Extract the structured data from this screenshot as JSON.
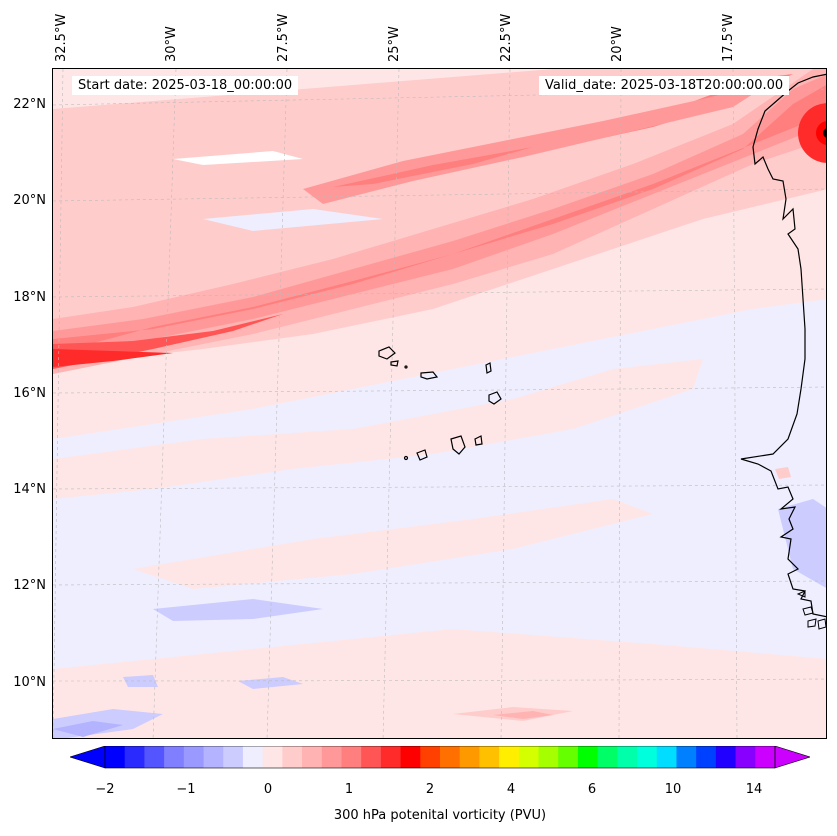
{
  "map": {
    "start_date": "Start date: 2025-03-18_00:00:00",
    "valid_date": "Valid_date: 2025-03-18T20:00:00.00",
    "longitude_labels": [
      "32.5°W",
      "30°W",
      "27.5°W",
      "25°W",
      "22.5°W",
      "20°W",
      "17.5°W"
    ],
    "latitude_labels": [
      "22°N",
      "20°N",
      "18°N",
      "16°N",
      "14°N",
      "12°N",
      "10°N"
    ],
    "gridlines": "dashed light grey",
    "field": "300 hPa potential vorticity",
    "features": [
      "subtropical PV streamer (red band) from west to northeast",
      "Cape Verde islands",
      "West African coastline"
    ]
  },
  "colorbar": {
    "label": "300 hPa potenital vorticity (PVU)",
    "tick_labels": [
      "−2",
      "−1",
      "0",
      "1",
      "2",
      "4",
      "6",
      "10",
      "14"
    ],
    "colors": [
      "#0000ff",
      "#2a2aff",
      "#5555ff",
      "#7f7fff",
      "#9999ff",
      "#b3b3ff",
      "#ccccff",
      "#eeeeff",
      "#ffe6e6",
      "#ffcccc",
      "#ffb3b3",
      "#ff9999",
      "#ff7f7f",
      "#ff5555",
      "#ff2a2a",
      "#ff0000",
      "#ff4000",
      "#ff7000",
      "#ff9900",
      "#ffc000",
      "#ffee00",
      "#d4ff00",
      "#a6ff00",
      "#66ff00",
      "#00ff00",
      "#00ff66",
      "#00ffaa",
      "#00ffdd",
      "#00ddff",
      "#0080ff",
      "#0040ff",
      "#2200ff",
      "#8800ff",
      "#cc00ff"
    ],
    "extend_low_color": "#0000ff",
    "extend_high_color": "#cc00ff"
  }
}
